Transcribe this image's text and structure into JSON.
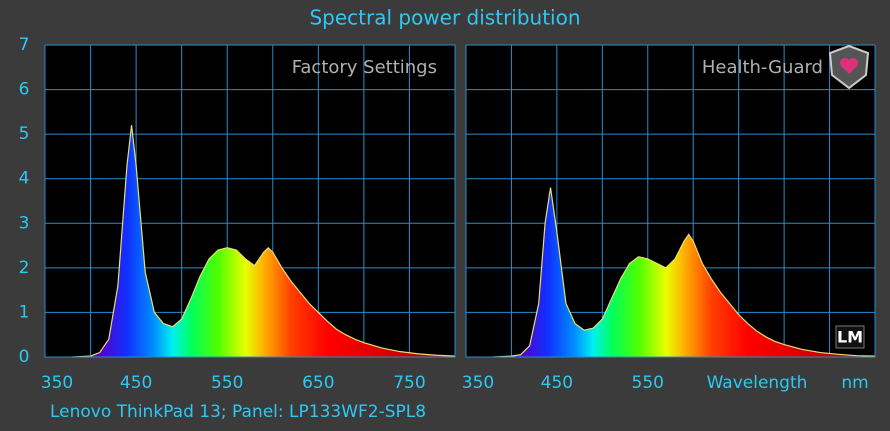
{
  "title": "Spectral power distribution",
  "footer": "Lenovo ThinkPad 13;  Panel: LP133WF2-SPL8",
  "logo": "LM",
  "x_label": "Wavelength",
  "x_unit": "nm",
  "chart_data": [
    {
      "type": "area",
      "label": "Factory Settings",
      "line_color": "#e8e070",
      "x": [
        380,
        400,
        410,
        420,
        430,
        440,
        445,
        450,
        460,
        470,
        480,
        490,
        500,
        510,
        520,
        530,
        540,
        550,
        560,
        570,
        580,
        590,
        595,
        600,
        610,
        620,
        630,
        640,
        650,
        660,
        670,
        680,
        690,
        700,
        720,
        740,
        760,
        780,
        800
      ],
      "values": [
        0,
        0.02,
        0.1,
        0.4,
        1.6,
        4.3,
        5.2,
        4.3,
        1.9,
        1.0,
        0.75,
        0.68,
        0.85,
        1.3,
        1.8,
        2.2,
        2.4,
        2.45,
        2.4,
        2.2,
        2.05,
        2.35,
        2.45,
        2.35,
        2.0,
        1.7,
        1.45,
        1.2,
        1.0,
        0.8,
        0.62,
        0.5,
        0.4,
        0.32,
        0.2,
        0.12,
        0.07,
        0.04,
        0.02
      ],
      "xlim": [
        350,
        800
      ],
      "ylim": [
        0,
        7
      ],
      "yticks": [
        0,
        1,
        2,
        3,
        4,
        5,
        6,
        7
      ],
      "xticks": [
        350,
        450,
        550,
        650,
        750
      ],
      "xgrid": [
        400,
        450,
        500,
        550,
        600,
        650,
        700,
        750,
        800
      ]
    },
    {
      "type": "area",
      "label": "Health-Guard",
      "line_color": "#e8e070",
      "x": [
        380,
        400,
        410,
        420,
        430,
        437,
        443,
        450,
        460,
        470,
        480,
        490,
        500,
        510,
        520,
        530,
        540,
        550,
        560,
        570,
        580,
        590,
        595,
        600,
        610,
        620,
        630,
        640,
        650,
        660,
        670,
        680,
        690,
        700,
        720,
        740,
        760,
        780,
        800
      ],
      "values": [
        0,
        0.02,
        0.05,
        0.25,
        1.2,
        3.0,
        3.8,
        2.8,
        1.2,
        0.75,
        0.6,
        0.65,
        0.85,
        1.3,
        1.75,
        2.1,
        2.25,
        2.2,
        2.1,
        2.0,
        2.2,
        2.6,
        2.75,
        2.6,
        2.1,
        1.75,
        1.45,
        1.2,
        0.95,
        0.75,
        0.58,
        0.45,
        0.35,
        0.28,
        0.17,
        0.1,
        0.06,
        0.03,
        0.02
      ],
      "xlim": [
        350,
        800
      ],
      "ylim": [
        0,
        7
      ],
      "yticks": [
        0,
        1,
        2,
        3,
        4,
        5,
        6,
        7
      ],
      "xticks": [
        350,
        450,
        550
      ],
      "xgrid": [
        400,
        450,
        500,
        550,
        600,
        650,
        700,
        750,
        800
      ]
    }
  ]
}
